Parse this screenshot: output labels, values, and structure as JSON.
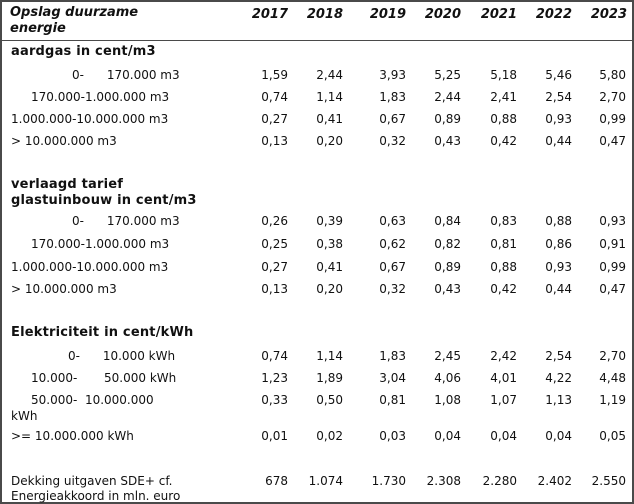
{
  "header": {
    "title_line1": "Opslag duurzame",
    "title_line2": "energie",
    "years": [
      "2017",
      "2018",
      "2019",
      "2020",
      "2021",
      "2022",
      "2023"
    ]
  },
  "sections": [
    {
      "title": "aardgas in cent/m3",
      "rows": [
        {
          "label": "0-      170.000 m3",
          "values": [
            "1,59",
            "2,44",
            "3,93",
            "5,25",
            "5,18",
            "5,46",
            "5,80"
          ]
        },
        {
          "label": "170.000-1.000.000 m3",
          "values": [
            "0,74",
            "1,14",
            "1,83",
            "2,44",
            "2,41",
            "2,54",
            "2,70"
          ]
        },
        {
          "label": "1.000.000-10.000.000 m3",
          "values": [
            "0,27",
            "0,41",
            "0,67",
            "0,89",
            "0,88",
            "0,93",
            "0,99"
          ]
        },
        {
          "label": "> 10.000.000 m3",
          "values": [
            "0,13",
            "0,20",
            "0,32",
            "0,43",
            "0,42",
            "0,44",
            "0,47"
          ]
        }
      ]
    },
    {
      "title_line1": "verlaagd tarief",
      "title_line2": "glastuinbouw in cent/m3",
      "rows": [
        {
          "label": "0-      170.000 m3",
          "values": [
            "0,26",
            "0,39",
            "0,63",
            "0,84",
            "0,83",
            "0,88",
            "0,93"
          ]
        },
        {
          "label": "170.000-1.000.000 m3",
          "values": [
            "0,25",
            "0,38",
            "0,62",
            "0,82",
            "0,81",
            "0,86",
            "0,91"
          ]
        },
        {
          "label": "1.000.000-10.000.000 m3",
          "values": [
            "0,27",
            "0,41",
            "0,67",
            "0,89",
            "0,88",
            "0,93",
            "0,99"
          ]
        },
        {
          "label": "> 10.000.000 m3",
          "values": [
            "0,13",
            "0,20",
            "0,32",
            "0,43",
            "0,42",
            "0,44",
            "0,47"
          ]
        }
      ]
    },
    {
      "title": "Elektriciteit in cent/kWh",
      "rows": [
        {
          "label": "0-      10.000 kWh",
          "values": [
            "0,74",
            "1,14",
            "1,83",
            "2,45",
            "2,42",
            "2,54",
            "2,70"
          ]
        },
        {
          "label": "10.000-       50.000 kWh",
          "values": [
            "1,23",
            "1,89",
            "3,04",
            "4,06",
            "4,01",
            "4,22",
            "4,48"
          ]
        },
        {
          "label_line1": "50.000-  10.000.000",
          "label_line2": "kWh",
          "values": [
            "0,33",
            "0,50",
            "0,81",
            "1,08",
            "1,07",
            "1,13",
            "1,19"
          ]
        },
        {
          "label": ">= 10.000.000 kWh",
          "values": [
            "0,01",
            "0,02",
            "0,03",
            "0,04",
            "0,04",
            "0,04",
            "0,05"
          ]
        }
      ]
    }
  ],
  "footer": {
    "label_line1": "Dekking uitgaven SDE+ cf.",
    "label_line2": "Energieakkoord in mln. euro",
    "values": [
      "678",
      "1.074",
      "1.730",
      "2.308",
      "2.280",
      "2.402",
      "2.550"
    ]
  }
}
